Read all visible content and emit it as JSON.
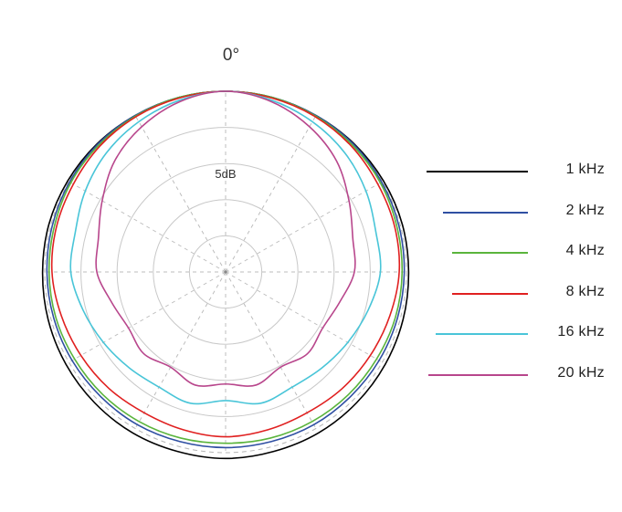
{
  "chart_data": {
    "type": "polar-line",
    "top_label": "0°",
    "ring_label": "5dB",
    "angle_step_deg": 30,
    "rings": 4,
    "r_scale_db_per_ring": 5,
    "range_db": [
      -25,
      0
    ],
    "angles_deg": [
      0,
      15,
      30,
      45,
      60,
      75,
      90,
      105,
      120,
      135,
      150,
      165,
      180,
      195,
      210,
      225,
      240,
      255,
      270,
      285,
      300,
      315,
      330,
      345
    ],
    "series": [
      {
        "name": "1 kHz",
        "color": "#000000",
        "values_db": [
          0,
          0,
          0,
          0.1,
          0.2,
          0.3,
          0.3,
          0.4,
          0.5,
          0.6,
          0.7,
          0.7,
          0.8,
          0.7,
          0.7,
          0.6,
          0.5,
          0.4,
          0.3,
          0.3,
          0.2,
          0.1,
          0,
          0
        ]
      },
      {
        "name": "2 kHz",
        "color": "#2f4fa2",
        "values_db": [
          0,
          0,
          0,
          0,
          -0.1,
          -0.2,
          -0.3,
          -0.4,
          -0.5,
          -0.6,
          -0.6,
          -0.7,
          -0.7,
          -0.7,
          -0.6,
          -0.6,
          -0.5,
          -0.4,
          -0.3,
          -0.2,
          -0.1,
          0,
          0,
          0
        ]
      },
      {
        "name": "4 kHz",
        "color": "#5ab43c",
        "values_db": [
          0,
          0,
          -0.1,
          -0.2,
          -0.3,
          -0.5,
          -0.6,
          -0.7,
          -0.9,
          -1.0,
          -1.1,
          -1.2,
          -1.3,
          -1.2,
          -1.1,
          -1.0,
          -0.9,
          -0.7,
          -0.6,
          -0.5,
          -0.3,
          -0.2,
          -0.1,
          0
        ]
      },
      {
        "name": "8 kHz",
        "color": "#e02020",
        "values_db": [
          0,
          -0.1,
          -0.2,
          -0.4,
          -0.7,
          -0.8,
          -1.0,
          -1.5,
          -1.9,
          -2.2,
          -2.5,
          -2.4,
          -2.2,
          -2.4,
          -2.5,
          -2.2,
          -1.9,
          -1.5,
          -1.0,
          -0.8,
          -0.7,
          -0.4,
          -0.2,
          -0.1
        ]
      },
      {
        "name": "16 kHz",
        "color": "#49c5d8",
        "values_db": [
          0,
          -0.4,
          -1.0,
          -1.7,
          -2.6,
          -3.5,
          -3.6,
          -4.6,
          -5.5,
          -6.2,
          -6.6,
          -6.2,
          -7.2,
          -6.2,
          -6.6,
          -6.2,
          -5.5,
          -4.6,
          -3.6,
          -3.5,
          -2.6,
          -1.7,
          -1.0,
          -0.4
        ]
      },
      {
        "name": "20 kHz",
        "color": "#b8468c",
        "values_db": [
          0,
          -0.6,
          -1.8,
          -3.3,
          -5.3,
          -6.8,
          -7.2,
          -8.7,
          -9.5,
          -9.0,
          -9.8,
          -8.8,
          -9.5,
          -8.8,
          -9.8,
          -9.0,
          -9.5,
          -8.7,
          -7.2,
          -6.8,
          -5.3,
          -3.3,
          -1.8,
          -0.6
        ]
      }
    ]
  }
}
